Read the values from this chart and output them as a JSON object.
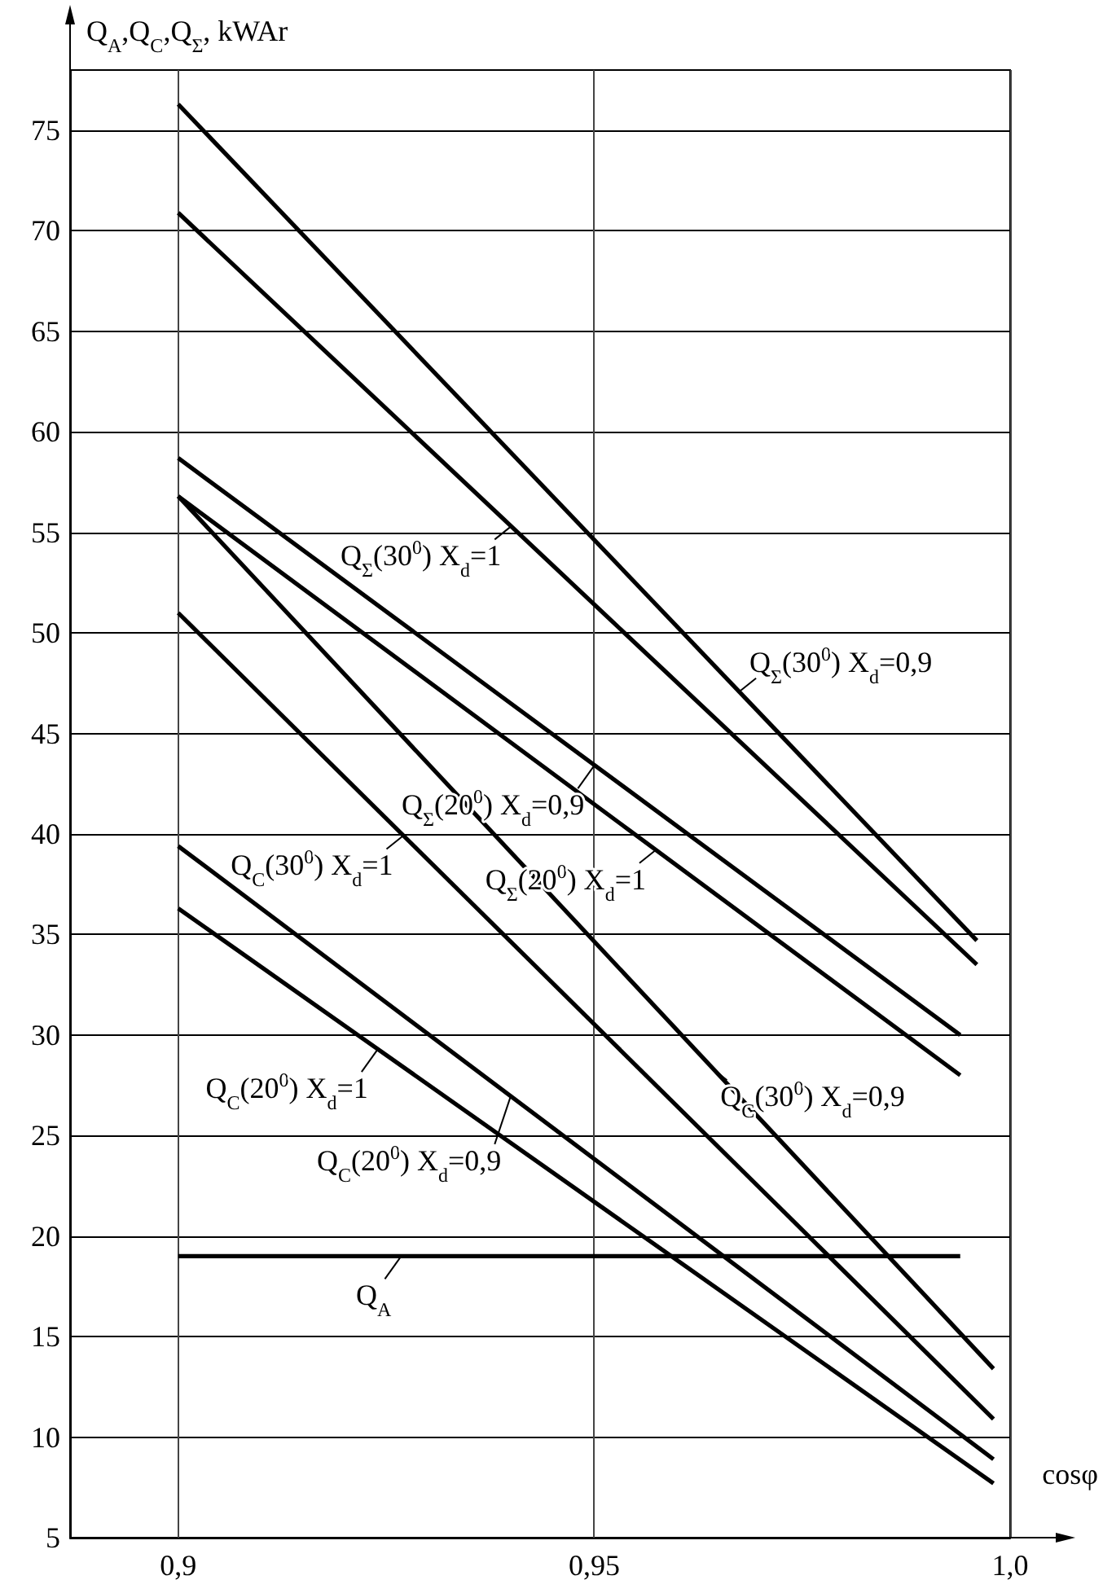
{
  "chart_data": {
    "type": "line",
    "xlabel": "cosφ",
    "ylabel": "Q$_{A}$,Q$_{C}$,Q$_{Σ}$, kWAr",
    "xlim": [
      0.887,
      1.0
    ],
    "ylim": [
      5,
      78
    ],
    "xticks": [
      {
        "value": 0.9,
        "label": "0,9"
      },
      {
        "value": 0.95,
        "label": "0,95"
      },
      {
        "value": 1.0,
        "label": "1,0"
      }
    ],
    "yticks": [
      5,
      10,
      15,
      20,
      25,
      30,
      35,
      40,
      45,
      50,
      55,
      60,
      65,
      70,
      75
    ],
    "grid": true,
    "marker": "none",
    "line_style": "solid",
    "series": [
      {
        "color": "#000000",
        "x": [
          0.9,
          0.996
        ],
        "values": [
          76.3,
          34.7
        ]
      },
      {
        "color": "#000000",
        "x": [
          0.9,
          0.996
        ],
        "values": [
          70.9,
          33.5
        ]
      },
      {
        "color": "#000000",
        "x": [
          0.9,
          0.994
        ],
        "values": [
          58.7,
          30.0
        ]
      },
      {
        "color": "#000000",
        "x": [
          0.9,
          0.994
        ],
        "values": [
          56.8,
          28.0
        ]
      },
      {
        "color": "#000000",
        "x": [
          0.9,
          0.998
        ],
        "values": [
          56.8,
          13.4
        ]
      },
      {
        "color": "#000000",
        "x": [
          0.9,
          0.998
        ],
        "values": [
          51.0,
          10.9
        ]
      },
      {
        "color": "#000000",
        "x": [
          0.9,
          0.998
        ],
        "values": [
          39.4,
          8.9
        ]
      },
      {
        "color": "#000000",
        "x": [
          0.9,
          0.998
        ],
        "values": [
          36.3,
          7.7
        ]
      },
      {
        "color": "#000000",
        "x": [
          0.9,
          0.994
        ],
        "values": [
          19.0,
          19.0
        ]
      }
    ],
    "annotations": [
      {
        "text": "Q$_{Σ}$(30$^{0}$) X$_{d}$=1",
        "x": 0.94,
        "y": 55.3
      },
      {
        "text": "Q$_{Σ}$(30$^{0}$) X$_{d}$=0,9",
        "x": 0.9675,
        "y": 47.1
      },
      {
        "text": "Q$_{Σ}$(20$^{0}$) X$_{d}$=0,9",
        "x": 0.95,
        "y": 43.4
      },
      {
        "text": "Q$_{Σ}$(20$^{0}$) X$_{d}$=1",
        "x": 0.9574,
        "y": 39.2
      },
      {
        "text": "Q$_{C}$(30$^{0}$) X$_{d}$=1",
        "x": 0.927,
        "y": 39.9
      },
      {
        "text": "Q$_{C}$(30$^{0}$) X$_{d}$=0,9",
        "x": 0.964,
        "y": 28.4
      },
      {
        "text": "Q$_{C}$(20$^{0}$) X$_{d}$=1",
        "x": 0.924,
        "y": 29.3
      },
      {
        "text": "Q$_{C}$(20$^{0}$) X$_{d}$=0,9",
        "x": 0.94,
        "y": 27.0
      },
      {
        "text": "Q$_{A}$",
        "x": 0.9268,
        "y": 19.0
      }
    ]
  }
}
